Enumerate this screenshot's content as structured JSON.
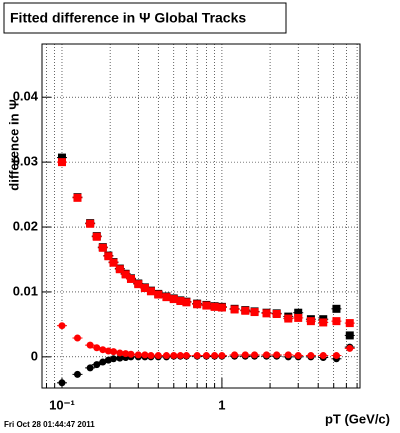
{
  "chart_data": {
    "type": "scatter",
    "title": "Fitted difference in  Ψ  Global Tracks",
    "y_label": "difference in Ψ",
    "x_label": "pT (GeV/c)",
    "footer": "Fri Oct 28 01:44:47 2011",
    "log_x": true,
    "grid": true,
    "xlim": [
      0.075,
      7.3
    ],
    "ylim": [
      -0.0048,
      0.0482
    ],
    "xticks": [
      {
        "value": 0.1,
        "label": "10⁻¹"
      },
      1
    ],
    "xminor": [
      0.08,
      0.09,
      0.2,
      0.3,
      0.4,
      0.5,
      0.6,
      0.7,
      0.8,
      0.9,
      2,
      3,
      4,
      5,
      6,
      7
    ],
    "yticks": [
      0,
      0.01,
      0.02,
      0.03,
      0.04
    ],
    "x": [
      0.1,
      0.125,
      0.15,
      0.165,
      0.18,
      0.195,
      0.21,
      0.23,
      0.25,
      0.27,
      0.3,
      0.33,
      0.36,
      0.4,
      0.45,
      0.5,
      0.55,
      0.6,
      0.7,
      0.8,
      0.9,
      1.0,
      1.2,
      1.4,
      1.6,
      1.9,
      2.2,
      2.6,
      3.0,
      3.6,
      4.3,
      5.2,
      6.3
    ],
    "series": [
      {
        "color": "#000000",
        "marker": "square",
        "values": [
          0.0307,
          0.0246,
          0.0206,
          0.0186,
          0.0169,
          0.0156,
          0.0146,
          0.0136,
          0.0128,
          0.0121,
          0.0113,
          0.0107,
          0.0102,
          0.0097,
          0.0093,
          0.009,
          0.0087,
          0.0085,
          0.0082,
          0.008,
          0.0078,
          0.0077,
          0.0074,
          0.0072,
          0.007,
          0.0068,
          0.0067,
          0.0062,
          0.0068,
          0.0058,
          0.0058,
          0.0074,
          0.0033
        ]
      },
      {
        "color": "#ff0000",
        "marker": "square",
        "values": [
          0.03,
          0.0245,
          0.0205,
          0.0185,
          0.0168,
          0.0155,
          0.0145,
          0.0135,
          0.0127,
          0.012,
          0.0112,
          0.0106,
          0.0101,
          0.0096,
          0.0092,
          0.0089,
          0.0086,
          0.0084,
          0.0081,
          0.0079,
          0.0077,
          0.0076,
          0.0073,
          0.0071,
          0.0069,
          0.0067,
          0.0066,
          0.0059,
          0.006,
          0.0055,
          0.0053,
          0.0055,
          0.0052
        ]
      },
      {
        "color": "#000000",
        "marker": "circle",
        "values": [
          -0.004,
          -0.0027,
          -0.0017,
          -0.0012,
          -0.0008,
          -0.0005,
          -0.0003,
          -0.0002,
          -0.0001,
          0.0,
          0.0,
          0.0,
          0.0,
          0.0,
          0.0,
          0.0001,
          0.0001,
          0.0001,
          0.0001,
          0.0001,
          0.0001,
          0.0001,
          0.0001,
          0.0001,
          0.0001,
          0.0001,
          0.0001,
          0.0,
          0.0,
          0.0,
          -0.0001,
          -0.0003,
          0.0015
        ]
      },
      {
        "color": "#ff0000",
        "marker": "circle",
        "values": [
          0.0048,
          0.0029,
          0.0018,
          0.0014,
          0.0011,
          0.0009,
          0.0008,
          0.0006,
          0.0005,
          0.0004,
          0.0003,
          0.0003,
          0.0002,
          0.0002,
          0.0002,
          0.0002,
          0.0002,
          0.0002,
          0.0002,
          0.0002,
          0.0002,
          0.0002,
          0.0003,
          0.0003,
          0.0003,
          0.0003,
          0.0003,
          0.0003,
          0.0002,
          0.0002,
          0.0002,
          0.0002,
          0.0013
        ]
      }
    ]
  }
}
